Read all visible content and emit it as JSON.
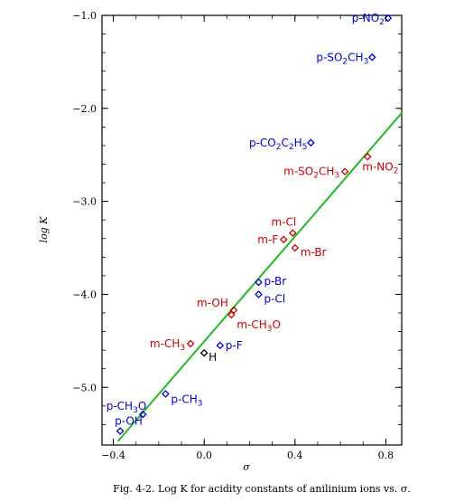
{
  "chart_data": {
    "type": "scatter",
    "caption": "Fig. 4-2. Log K for acidity constants of anilinium ions vs. σ.",
    "xlabel": "σ",
    "ylabel": "log K",
    "xlim": [
      -0.45,
      0.87
    ],
    "ylim": [
      -5.62,
      -1.0
    ],
    "x_ticks": [
      -0.4,
      0.0,
      0.4,
      0.8
    ],
    "x_tick_labels": [
      "−0.4",
      "0.0",
      "0.4",
      "0.8"
    ],
    "y_ticks": [
      -1.0,
      -2.0,
      -3.0,
      -4.0,
      -5.0
    ],
    "y_tick_labels": [
      "−1.0",
      "−2.0",
      "−3.0",
      "−4.0",
      "−5.0"
    ],
    "colors": {
      "para": "#0000cc",
      "meta": "#cc0000",
      "ref": "#000000",
      "fit": "#22bb22"
    },
    "fit_line": {
      "x": [
        -0.38,
        0.87
      ],
      "y": [
        -5.58,
        -2.05
      ]
    },
    "points": [
      {
        "x": 0.81,
        "y": -1.03,
        "text": "p-NO",
        "sub": "2",
        "series": "para"
      },
      {
        "x": 0.74,
        "y": -1.45,
        "text": "p-SO",
        "sub": "2",
        "tail": "CH",
        "sub2": "3",
        "series": "para"
      },
      {
        "x": 0.47,
        "y": -2.37,
        "text": "p-CO",
        "sub": "2",
        "tail": "C",
        "sub2": "2",
        "tail2": "H",
        "sub3": "5",
        "series": "para"
      },
      {
        "x": 0.72,
        "y": -2.52,
        "text": "m-NO",
        "sub": "2",
        "series": "meta"
      },
      {
        "x": 0.62,
        "y": -2.68,
        "text": "m-SO",
        "sub": "2",
        "tail": "CH",
        "sub2": "3",
        "series": "meta"
      },
      {
        "x": 0.39,
        "y": -3.34,
        "text": "m-Cl",
        "series": "meta"
      },
      {
        "x": 0.35,
        "y": -3.41,
        "text": "m-F",
        "series": "meta"
      },
      {
        "x": 0.4,
        "y": -3.5,
        "text": "m-Br",
        "series": "meta"
      },
      {
        "x": 0.24,
        "y": -3.87,
        "text": "p-Br",
        "series": "para"
      },
      {
        "x": 0.24,
        "y": -4.0,
        "text": "p-Cl",
        "series": "para"
      },
      {
        "x": 0.13,
        "y": -4.17,
        "text": "m-OH",
        "series": "meta"
      },
      {
        "x": 0.12,
        "y": -4.22,
        "text": "m-CH",
        "sub": "3",
        "tail": "O",
        "series": "meta"
      },
      {
        "x": -0.06,
        "y": -4.53,
        "text": "m-CH",
        "sub": "3",
        "series": "meta"
      },
      {
        "x": 0.07,
        "y": -4.55,
        "text": "p-F",
        "series": "para"
      },
      {
        "x": 0.0,
        "y": -4.63,
        "text": "H",
        "series": "ref"
      },
      {
        "x": -0.17,
        "y": -5.07,
        "text": "p-CH",
        "sub": "3",
        "series": "para"
      },
      {
        "x": -0.27,
        "y": -5.29,
        "text": "p-CH",
        "sub": "3",
        "tail": "O",
        "series": "para"
      },
      {
        "x": -0.37,
        "y": -5.47,
        "text": "p-OH",
        "series": "para"
      }
    ]
  }
}
